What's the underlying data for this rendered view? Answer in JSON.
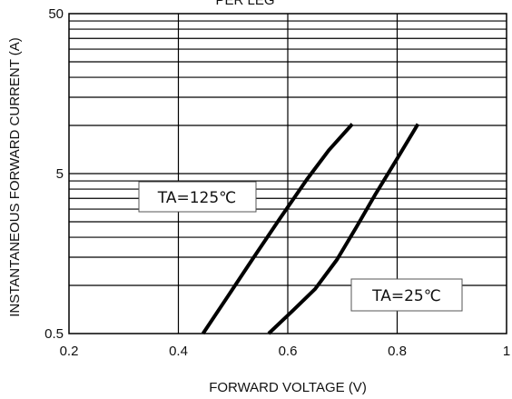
{
  "chart_data": {
    "type": "line",
    "title": "PER LEG",
    "xlabel": "FORWARD VOLTAGE (V)",
    "ylabel": "INSTANTANEOUS FORWARD CURRENT (A)",
    "xlim": [
      0.2,
      1.0
    ],
    "ylim": [
      0.5,
      50
    ],
    "yscale": "log",
    "grid": true,
    "x_ticks": [
      "0.2",
      "0.4",
      "0.6",
      "0.8",
      "1"
    ],
    "y_ticks": [
      "0.5",
      "5",
      "50"
    ],
    "series": [
      {
        "name": "TA=125℃",
        "x": [
          0.445,
          0.49,
          0.535,
          0.585,
          0.635,
          0.675,
          0.718
        ],
        "y": [
          0.5,
          0.85,
          1.45,
          2.6,
          4.6,
          7.0,
          10.2
        ]
      },
      {
        "name": "TA=25℃",
        "x": [
          0.565,
          0.61,
          0.65,
          0.69,
          0.725,
          0.76,
          0.8,
          0.838
        ],
        "y": [
          0.5,
          0.7,
          0.95,
          1.45,
          2.3,
          3.7,
          6.2,
          10.2
        ]
      }
    ],
    "annotations": [
      {
        "text": "TA=125℃"
      },
      {
        "text": "TA=25℃"
      }
    ]
  }
}
